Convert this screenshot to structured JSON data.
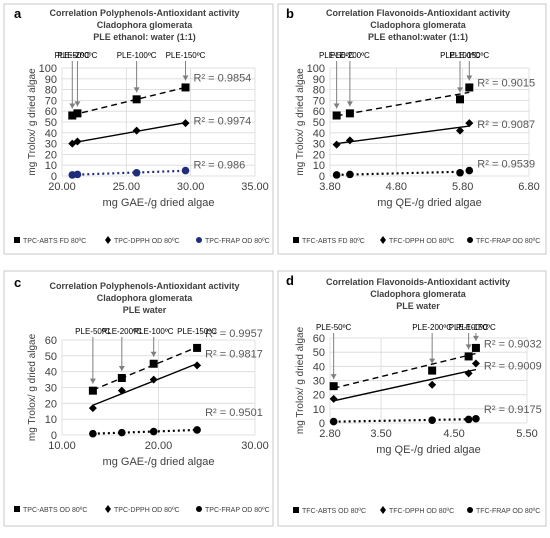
{
  "chart_data": [
    {
      "type": "scatter",
      "panel_label": "a",
      "title_lines": [
        "Correlation  Polyphenols-Antioxidant activity",
        "Cladophora glomerata",
        "PLE   ethanol: water (1:1)"
      ],
      "xlabel": "mg GAE-/g dried algae",
      "ylabel": "mg Trolox/ g dried algae",
      "xlim": [
        20,
        35
      ],
      "ylim": [
        0,
        100
      ],
      "xticks": [
        "20.00",
        "25.00",
        "30.00",
        "35.00"
      ],
      "yticks": [
        "0",
        "10",
        "20",
        "30",
        "40",
        "50",
        "60",
        "70",
        "80",
        "90",
        "100"
      ],
      "annotations": [
        {
          "text": "PLE-50ºC",
          "x": 20.8
        },
        {
          "text": "PLE-200ºC",
          "x": 21.2
        },
        {
          "text": "PLE-100ºC",
          "x": 25.8
        },
        {
          "text": "PLE-150ºC",
          "x": 29.6
        }
      ],
      "series": [
        {
          "name": "TPC-ABTS FD 80ºC",
          "marker": "square",
          "line": "dashed",
          "color": "#000000",
          "x": [
            20.8,
            21.2,
            25.8,
            29.6
          ],
          "y": [
            56,
            58,
            71,
            82
          ],
          "r2": "R² = 0.9854"
        },
        {
          "name": "TPC-DPPH OD 80ºC",
          "marker": "diamond",
          "line": "solid",
          "color": "#000000",
          "x": [
            20.8,
            21.2,
            25.8,
            29.6
          ],
          "y": [
            30,
            32,
            42,
            49
          ],
          "r2": "R² = 0.9974"
        },
        {
          "name": "TPC-FRAP OD 80ºC",
          "marker": "circle",
          "line": "dotted",
          "color": "#1f2d7a",
          "x": [
            20.8,
            21.2,
            25.8,
            29.6
          ],
          "y": [
            1,
            1.5,
            3,
            5
          ],
          "r2": "R² = 0.986"
        }
      ]
    },
    {
      "type": "scatter",
      "panel_label": "b",
      "title_lines": [
        "Correlation Flavonoids-Antioxidant activity",
        "Cladophora glomerata",
        "PLE   ethanol:water (1:1)"
      ],
      "xlabel": "mg QE-/g dried algae",
      "ylabel": "mg Trolox/ g dried algae",
      "xlim": [
        3.8,
        6.8
      ],
      "ylim": [
        0,
        100
      ],
      "xticks": [
        "3.80",
        "4.80",
        "5.80",
        "6.80"
      ],
      "yticks": [
        "0",
        "10",
        "20",
        "30",
        "40",
        "50",
        "60",
        "70",
        "80",
        "90",
        "100"
      ],
      "annotations": [
        {
          "text": "PLE-50ºC",
          "x": 3.9
        },
        {
          "text": "PLE-200ºC",
          "x": 4.1
        },
        {
          "text": "PLE-100ºC",
          "x": 5.76
        },
        {
          "text": "PLE-150ºC",
          "x": 5.9
        }
      ],
      "series": [
        {
          "name": "TFC-ABTS FD 80ºC",
          "marker": "square",
          "line": "dashed",
          "color": "#000000",
          "x": [
            3.9,
            4.1,
            5.76,
            5.9
          ],
          "y": [
            56,
            58,
            71,
            82
          ],
          "r2": "R² = 0.9015"
        },
        {
          "name": "TFC-DPPH OD 80ºC",
          "marker": "diamond",
          "line": "solid",
          "color": "#000000",
          "x": [
            3.9,
            4.1,
            5.76,
            5.9
          ],
          "y": [
            29,
            33,
            42,
            49
          ],
          "r2": "R² = 0.9087"
        },
        {
          "name": "TFC-FRAP OD 80ºC",
          "marker": "circle",
          "line": "dotted",
          "color": "#000000",
          "x": [
            3.9,
            4.1,
            5.76,
            5.9
          ],
          "y": [
            1,
            1.5,
            3,
            5
          ],
          "r2": "R² = 0.9539"
        }
      ]
    },
    {
      "type": "scatter",
      "panel_label": "c",
      "title_lines": [
        "Correlation  Polyphenols-Antioxidant activity",
        "Cladophora glomerata",
        "PLE   water"
      ],
      "xlabel": "mg GAE-/g dried algae",
      "ylabel": "mg Trolox/ g dried algae",
      "xlim": [
        10,
        30
      ],
      "ylim": [
        0,
        60
      ],
      "xticks": [
        "10.00",
        "20.00",
        "30.00"
      ],
      "yticks": [
        "0",
        "10",
        "20",
        "30",
        "40",
        "50",
        "60"
      ],
      "annotations": [
        {
          "text": "PLE-50ºC",
          "x": 13.2
        },
        {
          "text": "PLE-200ºC",
          "x": 16.2
        },
        {
          "text": "PLE-100ºC",
          "x": 19.5
        },
        {
          "text": "PLE-150ºC",
          "x": 24.0
        }
      ],
      "series": [
        {
          "name": "TPC-ABTS OD 80ºC",
          "marker": "square",
          "line": "dashed",
          "color": "#000000",
          "x": [
            13.2,
            16.2,
            19.5,
            24.0
          ],
          "y": [
            28,
            36,
            45,
            55
          ],
          "r2": "R² = 0.9957"
        },
        {
          "name": "TPC-DPPH OD 80ºC",
          "marker": "diamond",
          "line": "solid",
          "color": "#000000",
          "x": [
            13.2,
            16.2,
            19.5,
            24.0
          ],
          "y": [
            17,
            28,
            35,
            44
          ],
          "r2": "R² = 0.9817"
        },
        {
          "name": "TPC-FRAP OD 80ºC",
          "marker": "circle",
          "line": "dotted",
          "color": "#000000",
          "x": [
            13.2,
            16.2,
            19.5,
            24.0
          ],
          "y": [
            0.8,
            1.5,
            2.2,
            3.2
          ],
          "r2": "R² = 0.9501"
        }
      ]
    },
    {
      "type": "scatter",
      "panel_label": "d",
      "title_lines": [
        "Correlation Flavonoids-Antioxidant activity",
        "Cladophora glomerata",
        "PLE   water"
      ],
      "xlabel": "mg QE-/g dried algae",
      "ylabel": "mg Trolox/ g dried algae",
      "xlim": [
        2.8,
        5.5
      ],
      "ylim": [
        0,
        60
      ],
      "xticks": [
        "2.80",
        "3.50",
        "4.50",
        "5.50"
      ],
      "xtick_values": [
        2.8,
        3.5,
        4.5,
        5.5
      ],
      "yticks": [
        "0",
        "10",
        "20",
        "30",
        "40",
        "50",
        "60"
      ],
      "annotations": [
        {
          "text": "PLE-50ºC",
          "x": 2.85
        },
        {
          "text": "PLE-200ºC",
          "x": 4.2
        },
        {
          "text": "PLE-100ºC",
          "x": 4.7
        },
        {
          "text": "PLE-150ºC",
          "x": 4.8
        }
      ],
      "series": [
        {
          "name": "TFC-ABTS OD 80ºC",
          "marker": "square",
          "line": "dashed",
          "color": "#000000",
          "x": [
            2.85,
            4.2,
            4.7,
            4.8
          ],
          "y": [
            26,
            37,
            47,
            53
          ],
          "r2": "R² = 0.9032"
        },
        {
          "name": "TFC-DPPH OD 80ºC",
          "marker": "diamond",
          "line": "solid",
          "color": "#000000",
          "x": [
            2.85,
            4.2,
            4.7,
            4.8
          ],
          "y": [
            17,
            27,
            35,
            42
          ],
          "r2": "R² = 0.9009"
        },
        {
          "name": "TFC-FRAP OD 80ºC",
          "marker": "circle",
          "line": "dotted",
          "color": "#000000",
          "x": [
            2.85,
            4.2,
            4.7,
            4.8
          ],
          "y": [
            1,
            2,
            2.5,
            3
          ],
          "r2": "R² = 0.9175"
        }
      ]
    }
  ]
}
